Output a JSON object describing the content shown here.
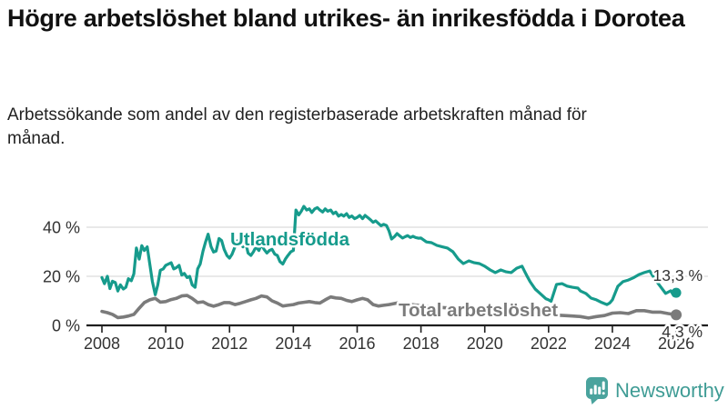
{
  "header": {
    "title": "Högre arbetslöshet bland utrikes- än inrikesfödda i Dorotea",
    "subtitle": "Arbetssökande som andel av den registerbaserade arbetskraften månad för månad."
  },
  "branding": {
    "logo_text": "Newsworthy",
    "logo_text_color": "#3f9c95",
    "mark_color": "#4aa39d",
    "mark_glyph_color": "#ffffff"
  },
  "chart_data": {
    "type": "line",
    "title": "Högre arbetslöshet bland utrikes- än inrikesfödda i Dorotea",
    "subtitle": "Arbetssökande som andel av den registerbaserade arbetskraften månad för månad.",
    "xlabel": "",
    "ylabel": "",
    "xlim": [
      2007.5,
      2026.9
    ],
    "ylim": [
      0,
      50
    ],
    "grid": "horizontal",
    "grid_color": "#dcdcdc",
    "axis_color": "#1f1f1f",
    "tick_label_color": "#333333",
    "x_ticks": [
      "2008",
      "2010",
      "2012",
      "2014",
      "2016",
      "2018",
      "2020",
      "2022",
      "2024",
      "2026"
    ],
    "x_tick_values": [
      2008,
      2010,
      2012,
      2014,
      2016,
      2018,
      2020,
      2022,
      2024,
      2026
    ],
    "y_ticks": [
      {
        "value": 0,
        "label": "0 %"
      },
      {
        "value": 20,
        "label": "20 %"
      },
      {
        "value": 40,
        "label": "40 %"
      }
    ],
    "series": [
      {
        "name": "Utlandsfödda",
        "color": "#169b8c",
        "end_value": 13.3,
        "end_label": "13,3 %",
        "points": [
          [
            2008.0,
            19.5
          ],
          [
            2008.08,
            17
          ],
          [
            2008.17,
            20
          ],
          [
            2008.25,
            15
          ],
          [
            2008.33,
            18
          ],
          [
            2008.42,
            17.5
          ],
          [
            2008.5,
            14
          ],
          [
            2008.58,
            16.5
          ],
          [
            2008.67,
            14.8
          ],
          [
            2008.75,
            15.5
          ],
          [
            2008.83,
            19
          ],
          [
            2008.92,
            18.2
          ],
          [
            2009.0,
            21
          ],
          [
            2009.08,
            31.5
          ],
          [
            2009.17,
            27
          ],
          [
            2009.25,
            32.5
          ],
          [
            2009.33,
            30.5
          ],
          [
            2009.42,
            32
          ],
          [
            2009.5,
            25
          ],
          [
            2009.58,
            18
          ],
          [
            2009.67,
            12.5
          ],
          [
            2009.75,
            16.5
          ],
          [
            2009.83,
            22.5
          ],
          [
            2009.92,
            23
          ],
          [
            2010.0,
            24.5
          ],
          [
            2010.17,
            25.5
          ],
          [
            2010.25,
            23
          ],
          [
            2010.33,
            23.5
          ],
          [
            2010.42,
            24.5
          ],
          [
            2010.5,
            20.5
          ],
          [
            2010.58,
            21.2
          ],
          [
            2010.67,
            19.5
          ],
          [
            2010.75,
            20
          ],
          [
            2010.83,
            16.5
          ],
          [
            2010.92,
            15.5
          ],
          [
            2011.0,
            23
          ],
          [
            2011.08,
            25
          ],
          [
            2011.17,
            30.3
          ],
          [
            2011.25,
            34
          ],
          [
            2011.33,
            37.2
          ],
          [
            2011.42,
            32.1
          ],
          [
            2011.5,
            29.9
          ],
          [
            2011.58,
            30.3
          ],
          [
            2011.67,
            35.4
          ],
          [
            2011.75,
            34.6
          ],
          [
            2011.83,
            31
          ],
          [
            2011.92,
            28.5
          ],
          [
            2012.0,
            27.4
          ],
          [
            2012.08,
            29
          ],
          [
            2012.17,
            32
          ],
          [
            2012.25,
            34.5
          ],
          [
            2012.33,
            33.5
          ],
          [
            2012.42,
            32
          ],
          [
            2012.5,
            34
          ],
          [
            2012.58,
            29.5
          ],
          [
            2012.67,
            28.5
          ],
          [
            2012.75,
            30
          ],
          [
            2012.83,
            32
          ],
          [
            2012.92,
            30.5
          ],
          [
            2013.0,
            33
          ],
          [
            2013.08,
            31
          ],
          [
            2013.17,
            29.5
          ],
          [
            2013.25,
            30.5
          ],
          [
            2013.33,
            31
          ],
          [
            2013.42,
            29
          ],
          [
            2013.5,
            28.5
          ],
          [
            2013.58,
            26
          ],
          [
            2013.67,
            25
          ],
          [
            2013.75,
            27
          ],
          [
            2013.83,
            28.5
          ],
          [
            2013.92,
            30
          ],
          [
            2014.0,
            30.5
          ],
          [
            2014.08,
            47
          ],
          [
            2014.17,
            45
          ],
          [
            2014.25,
            46.5
          ],
          [
            2014.33,
            48.5
          ],
          [
            2014.42,
            47
          ],
          [
            2014.5,
            47.5
          ],
          [
            2014.58,
            46
          ],
          [
            2014.67,
            47.5
          ],
          [
            2014.75,
            48
          ],
          [
            2014.83,
            47
          ],
          [
            2014.92,
            46.2
          ],
          [
            2015.0,
            47.5
          ],
          [
            2015.08,
            46.5
          ],
          [
            2015.17,
            47
          ],
          [
            2015.25,
            45.5
          ],
          [
            2015.33,
            46.2
          ],
          [
            2015.42,
            44.5
          ],
          [
            2015.5,
            45.2
          ],
          [
            2015.58,
            44.5
          ],
          [
            2015.67,
            45.5
          ],
          [
            2015.75,
            44
          ],
          [
            2015.83,
            44.6
          ],
          [
            2015.92,
            43.5
          ],
          [
            2016.0,
            44
          ],
          [
            2016.08,
            44.8
          ],
          [
            2016.17,
            43.5
          ],
          [
            2016.25,
            44.8
          ],
          [
            2016.33,
            44
          ],
          [
            2016.42,
            43
          ],
          [
            2016.5,
            42
          ],
          [
            2016.58,
            42.6
          ],
          [
            2016.67,
            41.5
          ],
          [
            2016.75,
            40.6
          ],
          [
            2016.83,
            41.2
          ],
          [
            2016.92,
            40.7
          ],
          [
            2017.0,
            38.5
          ],
          [
            2017.08,
            35.2
          ],
          [
            2017.17,
            36.2
          ],
          [
            2017.25,
            37.4
          ],
          [
            2017.33,
            36.5
          ],
          [
            2017.42,
            35.6
          ],
          [
            2017.5,
            36.1
          ],
          [
            2017.58,
            36.6
          ],
          [
            2017.67,
            35.8
          ],
          [
            2017.75,
            36.3
          ],
          [
            2017.83,
            35.8
          ],
          [
            2017.92,
            35.5
          ],
          [
            2018.0,
            35.6
          ],
          [
            2018.17,
            34
          ],
          [
            2018.33,
            33.7
          ],
          [
            2018.5,
            32.6
          ],
          [
            2018.67,
            32
          ],
          [
            2018.83,
            31.5
          ],
          [
            2019.0,
            30
          ],
          [
            2019.17,
            27
          ],
          [
            2019.33,
            25.2
          ],
          [
            2019.5,
            26.3
          ],
          [
            2019.67,
            25.5
          ],
          [
            2019.83,
            25.2
          ],
          [
            2020.0,
            24.1
          ],
          [
            2020.17,
            22.6
          ],
          [
            2020.33,
            21.5
          ],
          [
            2020.5,
            22.6
          ],
          [
            2020.67,
            21.8
          ],
          [
            2020.83,
            21.5
          ],
          [
            2021.0,
            23.3
          ],
          [
            2021.17,
            24.1
          ],
          [
            2021.25,
            22
          ],
          [
            2021.33,
            20
          ],
          [
            2021.42,
            17.8
          ],
          [
            2021.58,
            14.8
          ],
          [
            2021.75,
            12.8
          ],
          [
            2021.92,
            10.8
          ],
          [
            2022.0,
            10.4
          ],
          [
            2022.08,
            9.8
          ],
          [
            2022.25,
            16.7
          ],
          [
            2022.42,
            17
          ],
          [
            2022.58,
            16
          ],
          [
            2022.75,
            15.5
          ],
          [
            2022.92,
            15.2
          ],
          [
            2023.0,
            14
          ],
          [
            2023.17,
            13
          ],
          [
            2023.33,
            11.1
          ],
          [
            2023.5,
            10.4
          ],
          [
            2023.67,
            9.3
          ],
          [
            2023.83,
            8.5
          ],
          [
            2023.92,
            9.2
          ],
          [
            2024.0,
            10.4
          ],
          [
            2024.17,
            15.9
          ],
          [
            2024.33,
            17.8
          ],
          [
            2024.5,
            18.5
          ],
          [
            2024.67,
            19.5
          ],
          [
            2024.83,
            20.7
          ],
          [
            2025.0,
            21.5
          ],
          [
            2025.17,
            22.2
          ],
          [
            2025.33,
            18.9
          ],
          [
            2025.5,
            15.9
          ],
          [
            2025.67,
            13
          ],
          [
            2025.83,
            14.1
          ],
          [
            2025.92,
            12.2
          ],
          [
            2026.0,
            13.3
          ]
        ]
      },
      {
        "name": "Total arbetslöshet",
        "color": "#7b7b7b",
        "end_value": 4.3,
        "end_label": "4,3 %",
        "points": [
          [
            2008.0,
            5.7
          ],
          [
            2008.17,
            5.2
          ],
          [
            2008.33,
            4.5
          ],
          [
            2008.5,
            3.2
          ],
          [
            2008.67,
            3.4
          ],
          [
            2008.83,
            3.8
          ],
          [
            2009.0,
            4.5
          ],
          [
            2009.17,
            7
          ],
          [
            2009.33,
            9.3
          ],
          [
            2009.5,
            10.4
          ],
          [
            2009.67,
            11
          ],
          [
            2009.83,
            9.5
          ],
          [
            2010.0,
            9.7
          ],
          [
            2010.17,
            10.5
          ],
          [
            2010.33,
            11
          ],
          [
            2010.5,
            12
          ],
          [
            2010.67,
            12.2
          ],
          [
            2010.83,
            11
          ],
          [
            2011.0,
            9.3
          ],
          [
            2011.17,
            9.6
          ],
          [
            2011.33,
            8.5
          ],
          [
            2011.5,
            7.8
          ],
          [
            2011.67,
            8.5
          ],
          [
            2011.83,
            9.3
          ],
          [
            2012.0,
            9.3
          ],
          [
            2012.17,
            8.5
          ],
          [
            2012.33,
            9
          ],
          [
            2012.5,
            9.7
          ],
          [
            2012.67,
            10.4
          ],
          [
            2012.83,
            11
          ],
          [
            2013.0,
            12
          ],
          [
            2013.17,
            11.6
          ],
          [
            2013.33,
            10
          ],
          [
            2013.5,
            9.1
          ],
          [
            2013.67,
            7.9
          ],
          [
            2013.83,
            8.2
          ],
          [
            2014.0,
            8.5
          ],
          [
            2014.17,
            9.1
          ],
          [
            2014.33,
            9.4
          ],
          [
            2014.5,
            9.7
          ],
          [
            2014.67,
            9.3
          ],
          [
            2014.83,
            9.1
          ],
          [
            2015.0,
            10.4
          ],
          [
            2015.17,
            11.6
          ],
          [
            2015.33,
            11.2
          ],
          [
            2015.5,
            11
          ],
          [
            2015.67,
            10.2
          ],
          [
            2015.83,
            9.7
          ],
          [
            2016.0,
            10.4
          ],
          [
            2016.17,
            11
          ],
          [
            2016.33,
            10.4
          ],
          [
            2016.5,
            8.5
          ],
          [
            2016.67,
            7.9
          ],
          [
            2016.83,
            8.2
          ],
          [
            2017.0,
            8.5
          ],
          [
            2017.25,
            9.1
          ],
          [
            2017.5,
            8.8
          ],
          [
            2017.75,
            8.4
          ],
          [
            2018.0,
            8.0
          ],
          [
            2018.25,
            7.7
          ],
          [
            2018.5,
            7.4
          ],
          [
            2018.75,
            7.2
          ],
          [
            2019.0,
            7.0
          ],
          [
            2019.25,
            6.7
          ],
          [
            2019.5,
            6.4
          ],
          [
            2019.75,
            6.2
          ],
          [
            2020.0,
            6.0
          ],
          [
            2020.25,
            5.8
          ],
          [
            2020.5,
            5.6
          ],
          [
            2020.75,
            5.4
          ],
          [
            2021.0,
            5.2
          ],
          [
            2021.25,
            5.0
          ],
          [
            2021.5,
            4.8
          ],
          [
            2021.75,
            4.6
          ],
          [
            2022.0,
            4.4
          ],
          [
            2022.25,
            4.2
          ],
          [
            2022.5,
            4.0
          ],
          [
            2022.75,
            3.8
          ],
          [
            2023.0,
            3.6
          ],
          [
            2023.25,
            3.0
          ],
          [
            2023.5,
            3.6
          ],
          [
            2023.75,
            4.0
          ],
          [
            2024.0,
            5.0
          ],
          [
            2024.25,
            5.2
          ],
          [
            2024.5,
            4.8
          ],
          [
            2024.75,
            6.0
          ],
          [
            2025.0,
            6.0
          ],
          [
            2025.25,
            5.4
          ],
          [
            2025.5,
            5.4
          ],
          [
            2025.75,
            4.8
          ],
          [
            2026.0,
            4.3
          ]
        ]
      }
    ],
    "legend_position": "inline-labels"
  }
}
